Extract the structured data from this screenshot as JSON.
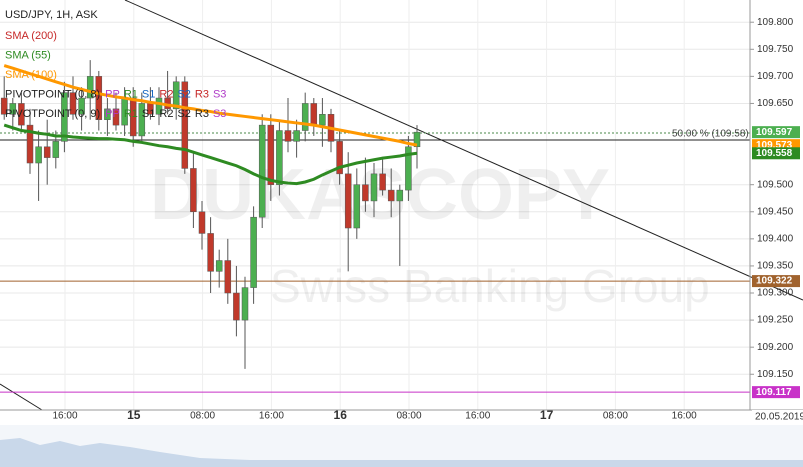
{
  "chart_data": {
    "type": "candlestick",
    "title": "USD/JPY, 1H, ASK",
    "watermark": [
      "DUKASCOPY",
      "Swiss Banking Group"
    ],
    "legend": [
      [
        {
          "text": "SMA (200)",
          "color": "#c62828"
        }
      ],
      [
        {
          "text": "SMA (55)",
          "color": "#2e8b22"
        }
      ],
      [
        {
          "text": "SMA (100)",
          "color": "#ff9800"
        }
      ],
      [
        {
          "text": "PIVOTPOINT (0, 8)",
          "color": "#222222"
        },
        {
          "text": "PP",
          "color": "#b03cc8"
        },
        {
          "text": "R1",
          "color": "#2e8b22"
        },
        {
          "text": "S1",
          "color": "#1565c0"
        },
        {
          "text": "R2",
          "color": "#c62828"
        },
        {
          "text": "S2",
          "color": "#1565c0"
        },
        {
          "text": "R3",
          "color": "#c62828"
        },
        {
          "text": "S3",
          "color": "#b03cc8"
        }
      ],
      [
        {
          "text": "PIVOTPOINT (0, 9)",
          "color": "#222222"
        },
        {
          "text": "PP",
          "color": "#b03cc8"
        },
        {
          "text": "R1",
          "color": "#2e8b22"
        },
        {
          "text": "S1",
          "color": "#222222"
        },
        {
          "text": "R2",
          "color": "#222222"
        },
        {
          "text": "S2",
          "color": "#222222"
        },
        {
          "text": "R3",
          "color": "#222222"
        },
        {
          "text": "S3",
          "color": "#b03cc8"
        }
      ]
    ],
    "candles": {
      "open": [
        109.66,
        109.63,
        109.65,
        109.61,
        109.54,
        109.57,
        109.55,
        109.58,
        109.67,
        109.63,
        109.66,
        109.7,
        109.62,
        109.64,
        109.61,
        109.66,
        109.59,
        109.65,
        109.63,
        109.66,
        109.64,
        109.69,
        109.53,
        109.45,
        109.41,
        109.34,
        109.36,
        109.3,
        109.25,
        109.31,
        109.44,
        109.61,
        109.5,
        109.6,
        109.58,
        109.6,
        109.65,
        109.61,
        109.63,
        109.58,
        109.52,
        109.42,
        109.5,
        109.47,
        109.52,
        109.49,
        109.47,
        109.49,
        109.57
      ],
      "high": [
        109.7,
        109.66,
        109.67,
        109.64,
        109.6,
        109.62,
        109.6,
        109.69,
        109.7,
        109.68,
        109.73,
        109.71,
        109.66,
        109.67,
        109.68,
        109.68,
        109.67,
        109.68,
        109.68,
        109.71,
        109.7,
        109.7,
        109.56,
        109.47,
        109.44,
        109.38,
        109.4,
        109.35,
        109.33,
        109.46,
        109.63,
        109.63,
        109.62,
        109.66,
        109.62,
        109.67,
        109.66,
        109.66,
        109.64,
        109.6,
        109.56,
        109.53,
        109.55,
        109.54,
        109.55,
        109.53,
        109.5,
        109.59,
        109.61
      ],
      "low": [
        109.62,
        109.6,
        109.6,
        109.52,
        109.47,
        109.5,
        109.53,
        109.56,
        109.62,
        109.6,
        109.62,
        109.6,
        109.59,
        109.6,
        109.59,
        109.57,
        109.58,
        109.62,
        109.61,
        109.63,
        109.62,
        109.52,
        109.42,
        109.38,
        109.3,
        109.31,
        109.28,
        109.22,
        109.16,
        109.28,
        109.42,
        109.47,
        109.48,
        109.56,
        109.55,
        109.58,
        109.59,
        109.57,
        109.56,
        109.5,
        109.34,
        109.4,
        109.45,
        109.44,
        109.48,
        109.44,
        109.35,
        109.47,
        109.53
      ],
      "close": [
        109.63,
        109.65,
        109.61,
        109.54,
        109.57,
        109.55,
        109.58,
        109.67,
        109.63,
        109.66,
        109.7,
        109.62,
        109.64,
        109.61,
        109.66,
        109.59,
        109.65,
        109.63,
        109.66,
        109.64,
        109.69,
        109.53,
        109.45,
        109.41,
        109.34,
        109.36,
        109.3,
        109.25,
        109.31,
        109.44,
        109.61,
        109.5,
        109.6,
        109.58,
        109.6,
        109.65,
        109.61,
        109.63,
        109.58,
        109.52,
        109.42,
        109.5,
        109.47,
        109.52,
        109.49,
        109.47,
        109.49,
        109.57,
        109.597
      ]
    },
    "up_color": "#4caf50",
    "down_color": "#c0392b",
    "series": [
      {
        "name": "SMA (55)",
        "color": "#2e8b22",
        "values": [
          109.61,
          109.605,
          109.6,
          109.598,
          109.595,
          109.593,
          109.59,
          109.59,
          109.588,
          109.587,
          109.586,
          109.585,
          109.585,
          109.584,
          109.583,
          109.58,
          109.578,
          109.575,
          109.572,
          109.57,
          109.567,
          109.565,
          109.56,
          109.555,
          109.55,
          109.545,
          109.54,
          109.535,
          109.528,
          109.52,
          109.513,
          109.508,
          109.505,
          109.503,
          109.502,
          109.505,
          109.51,
          109.518,
          109.525,
          109.532,
          109.536,
          109.54,
          109.543,
          109.546,
          109.549,
          109.551,
          109.553,
          109.556,
          109.558
        ]
      },
      {
        "name": "SMA (100)",
        "color": "#ff9800",
        "values": [
          109.72,
          109.715,
          109.71,
          109.705,
          109.7,
          109.695,
          109.69,
          109.685,
          109.68,
          109.676,
          109.672,
          109.668,
          109.665,
          109.662,
          109.66,
          109.657,
          109.655,
          109.652,
          109.65,
          109.647,
          109.645,
          109.642,
          109.64,
          109.637,
          109.635,
          109.632,
          109.63,
          109.628,
          109.626,
          109.624,
          109.622,
          109.62,
          109.618,
          109.616,
          109.614,
          109.612,
          109.61,
          109.607,
          109.604,
          109.601,
          109.598,
          109.595,
          109.592,
          109.589,
          109.586,
          109.583,
          109.58,
          109.576,
          109.573
        ]
      }
    ],
    "ylim": [
      109.084,
      109.841
    ],
    "yticks": [
      {
        "value": 109.15,
        "label": "109.150"
      },
      {
        "value": 109.2,
        "label": "109.200"
      },
      {
        "value": 109.25,
        "label": "109.250"
      },
      {
        "value": 109.3,
        "label": "109.300"
      },
      {
        "value": 109.35,
        "label": "109.350"
      },
      {
        "value": 109.4,
        "label": "109.400"
      },
      {
        "value": 109.45,
        "label": "109.450"
      },
      {
        "value": 109.5,
        "label": "109.500"
      },
      {
        "value": 109.65,
        "label": "109.650"
      },
      {
        "value": 109.7,
        "label": "109.700"
      },
      {
        "value": 109.75,
        "label": "109.750"
      },
      {
        "value": 109.8,
        "label": "109.800"
      }
    ],
    "x_labels": [
      "16:00",
      "15",
      "08:00",
      "16:00",
      "16",
      "08:00",
      "16:00",
      "17",
      "08:00",
      "16:00"
    ],
    "date_label": "20.05.2019",
    "annotation": "50.00 % (109.58)",
    "price_labels": [
      {
        "value": 109.597,
        "color": "#4caf50"
      },
      {
        "value": 109.573,
        "color": "#ff9800"
      },
      {
        "value": 109.558,
        "color": "#2e8b22"
      },
      {
        "value": 109.322,
        "color": "#a0622d"
      },
      {
        "value": 109.117,
        "color": "#c832c8"
      }
    ],
    "level_lines": [
      109.322,
      109.117
    ]
  }
}
